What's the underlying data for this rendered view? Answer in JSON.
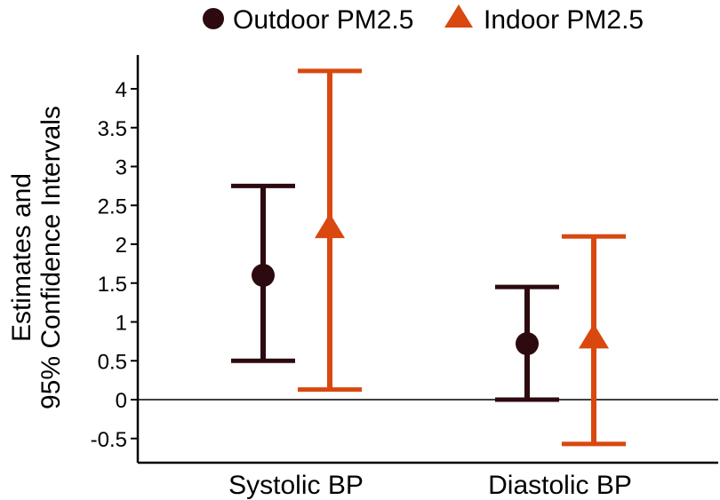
{
  "chart_data": {
    "type": "errorbar",
    "title": "",
    "xlabel": "",
    "ylabel_lines": [
      "Estimates and",
      "95% Confidence Intervals"
    ],
    "categories": [
      "Systolic BP",
      "Diastolic BP"
    ],
    "ylim": [
      -0.8,
      4.4
    ],
    "yticks": [
      -0.5,
      0,
      0.5,
      1,
      1.5,
      2,
      2.5,
      3,
      3.5,
      4
    ],
    "ytick_labels": [
      "-0.5",
      "0",
      "0.5",
      "1",
      "1.5",
      "2",
      "2.5",
      "3",
      "3.5",
      "4"
    ],
    "reference_line": 0,
    "legend_position": "top",
    "series": [
      {
        "name": "Outdoor PM2.5",
        "marker": "circle",
        "color": "#2d0a0f",
        "estimates": [
          1.6,
          0.72
        ],
        "lower": [
          0.5,
          0.0
        ],
        "upper": [
          2.75,
          1.45
        ]
      },
      {
        "name": "Indoor PM2.5",
        "marker": "triangle",
        "color": "#d9480f",
        "estimates": [
          2.2,
          0.78
        ],
        "lower": [
          0.13,
          -0.57
        ],
        "upper": [
          4.23,
          2.1
        ]
      }
    ]
  }
}
